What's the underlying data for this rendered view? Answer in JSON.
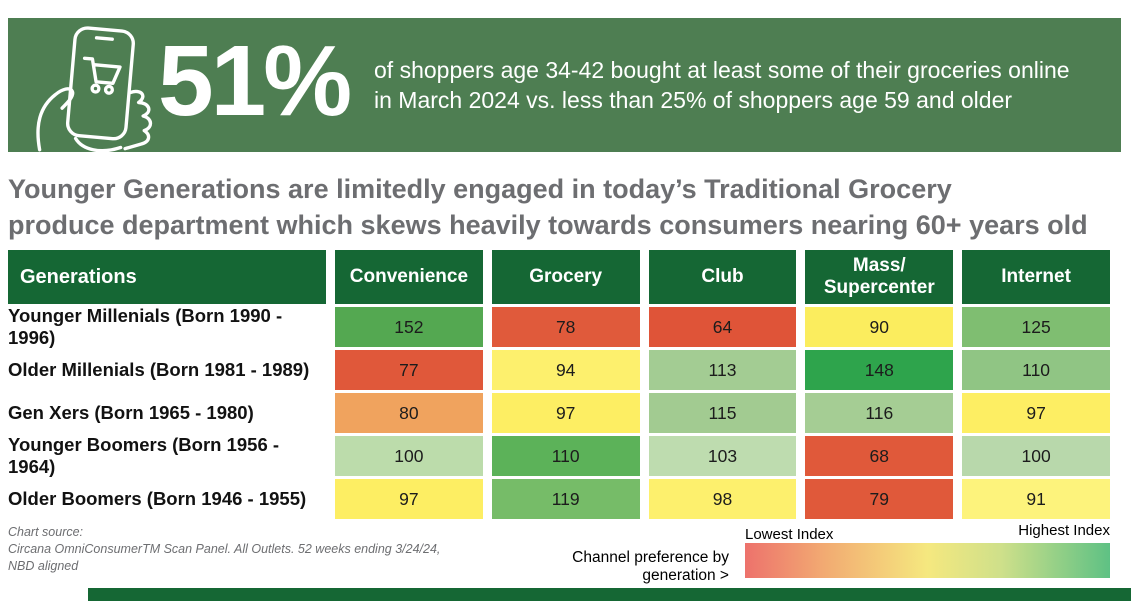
{
  "banner": {
    "stat": "51%",
    "description_line1": "of shoppers age 34-42 bought at least some of their groceries online",
    "description_line2": "in March 2024 vs. less than 25% of shoppers age 59 and older",
    "icon": "phone-shopping-cart-icon",
    "bg_color": "#4e7e52",
    "text_color": "#ffffff"
  },
  "headline": {
    "line1": "Younger Generations are limitedly engaged in today’s Traditional Grocery",
    "line2": "produce department which skews heavily towards consumers nearing 60+ years old"
  },
  "chart_data": {
    "type": "heatmap",
    "title": "Channel preference by generation (index)",
    "row_header": "Generations",
    "columns": [
      "Convenience",
      "Grocery",
      "Club",
      "Mass/ Supercenter",
      "Internet"
    ],
    "rows": [
      {
        "label": "Younger Millenials (Born 1990 - 1996)",
        "values": [
          152,
          78,
          64,
          90,
          125
        ],
        "colors": [
          "#54a851",
          "#e05a3b",
          "#df5438",
          "#fbed5e",
          "#7fbe71"
        ]
      },
      {
        "label": "Older Millenials (Born 1981 - 1989)",
        "values": [
          77,
          94,
          113,
          148,
          110
        ],
        "colors": [
          "#e0583a",
          "#fdf06d",
          "#a3cc93",
          "#2ea44c",
          "#90c584"
        ]
      },
      {
        "label": "Gen Xers (Born 1965 - 1980)",
        "values": [
          80,
          97,
          115,
          116,
          97
        ],
        "colors": [
          "#f0a35e",
          "#fdee63",
          "#a2cb91",
          "#a5cd94",
          "#fdee63"
        ]
      },
      {
        "label": "Younger Boomers (Born 1956 - 1964)",
        "values": [
          100,
          110,
          103,
          68,
          100
        ],
        "colors": [
          "#bcdcab",
          "#5cb259",
          "#bedcaf",
          "#e0593a",
          "#b8d8ab"
        ]
      },
      {
        "label": "Older Boomers (Born 1946 - 1955)",
        "values": [
          97,
          119,
          98,
          79,
          91
        ],
        "colors": [
          "#fdee63",
          "#76bc68",
          "#fdf06d",
          "#e0593a",
          "#fdf37c"
        ]
      }
    ],
    "header_bg_color": "#156734",
    "legend": {
      "caption": "Channel preference by generation >",
      "low_label": "Lowest Index",
      "high_label": "Highest Index",
      "low_color": "#ed726c",
      "mid_color": "#f5e87f",
      "high_color": "#5ec184",
      "position": "bottom-right"
    }
  },
  "footer": {
    "source_label": "Chart source:",
    "source_line1": "Circana OmniConsumerTM Scan Panel. All Outlets. 52 weeks ending 3/24/24,",
    "source_line2": "NBD aligned"
  }
}
